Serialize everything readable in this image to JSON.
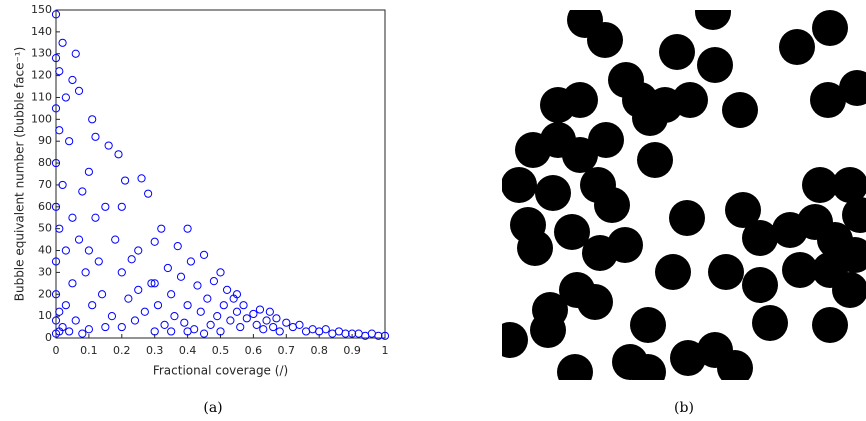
{
  "chart_data": {
    "type": "scatter",
    "x_label": "Fractional coverage (/)",
    "y_label": "Bubble equivalent number (bubble face⁻¹)",
    "caption": "(a)",
    "color": "#0000ff",
    "xlim": [
      0,
      1
    ],
    "ylim": [
      0,
      150
    ],
    "xticks": [
      0,
      0.1,
      0.2,
      0.3,
      0.4,
      0.5,
      0.6,
      0.7,
      0.8,
      0.9,
      1
    ],
    "yticks": [
      0,
      10,
      20,
      30,
      40,
      50,
      60,
      70,
      80,
      90,
      100,
      110,
      120,
      130,
      140,
      150
    ],
    "x": [
      0,
      0,
      0,
      0,
      0,
      0,
      0,
      0,
      0,
      0.01,
      0.01,
      0.01,
      0.01,
      0.01,
      0.02,
      0.02,
      0.02,
      0.03,
      0.03,
      0.03,
      0.04,
      0.04,
      0.05,
      0.05,
      0.06,
      0.06,
      0.07,
      0.07,
      0.08,
      0.08,
      0.09,
      0.1,
      0.1,
      0.11,
      0.11,
      0.12,
      0.12,
      0.13,
      0.14,
      0.15,
      0.16,
      0.17,
      0.18,
      0.19,
      0.2,
      0.2,
      0.21,
      0.22,
      0.23,
      0.24,
      0.25,
      0.26,
      0.27,
      0.28,
      0.29,
      0.3,
      0.3,
      0.31,
      0.32,
      0.33,
      0.34,
      0.35,
      0.36,
      0.37,
      0.38,
      0.39,
      0.4,
      0.4,
      0.41,
      0.42,
      0.43,
      0.44,
      0.45,
      0.46,
      0.47,
      0.48,
      0.49,
      0.5,
      0.5,
      0.51,
      0.52,
      0.53,
      0.54,
      0.55,
      0.56,
      0.57,
      0.58,
      0.6,
      0.61,
      0.62,
      0.63,
      0.64,
      0.65,
      0.66,
      0.67,
      0.68,
      0.7,
      0.72,
      0.74,
      0.76,
      0.78,
      0.8,
      0.82,
      0.84,
      0.86,
      0.88,
      0.9,
      0.92,
      0.94,
      0.96,
      0.98,
      1,
      0.05,
      0.15,
      0.25,
      0.35,
      0.45,
      0.55,
      0.1,
      0.2,
      0.3,
      0.4
    ],
    "y": [
      148,
      128,
      105,
      80,
      60,
      35,
      20,
      8,
      2,
      122,
      95,
      50,
      12,
      3,
      135,
      70,
      5,
      110,
      40,
      15,
      90,
      3,
      118,
      25,
      130,
      8,
      113,
      45,
      67,
      2,
      30,
      76,
      4,
      100,
      15,
      92,
      55,
      35,
      20,
      60,
      88,
      10,
      45,
      84,
      30,
      5,
      72,
      18,
      36,
      8,
      40,
      73,
      12,
      66,
      25,
      44,
      3,
      15,
      50,
      6,
      32,
      20,
      10,
      42,
      28,
      7,
      50,
      15,
      35,
      4,
      24,
      12,
      38,
      18,
      6,
      26,
      10,
      30,
      3,
      15,
      22,
      8,
      18,
      12,
      5,
      15,
      9,
      11,
      6,
      13,
      4,
      8,
      12,
      5,
      9,
      3,
      7,
      5,
      6,
      3,
      4,
      3,
      4,
      2,
      3,
      2,
      2,
      2,
      1,
      2,
      1,
      1,
      55,
      5,
      22,
      3,
      2,
      20,
      40,
      60,
      25,
      3
    ]
  },
  "image": {
    "caption": "(b)"
  }
}
